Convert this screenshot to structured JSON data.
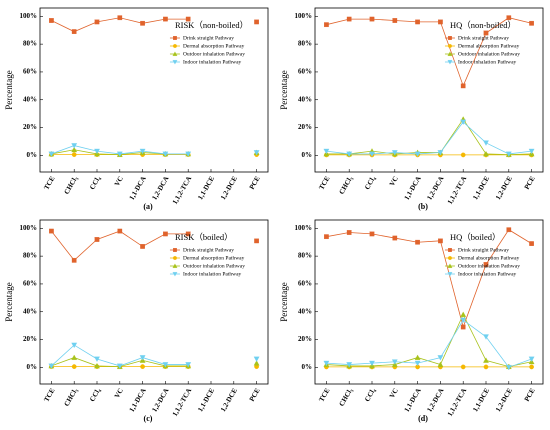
{
  "chart_data": [
    {
      "type": "line",
      "title": "RISK（non-boiled）",
      "panel_label": "(a)",
      "ylabel": "Percentage",
      "categories": [
        "TCE",
        "CHCl₃",
        "CCl₄",
        "VC",
        "1,1-DCA",
        "1,2-DCA",
        "1,1,2-TCA",
        "1,1-DCE",
        "1,2-DCE",
        "PCE"
      ],
      "series": [
        {
          "name": "Drink straight Pathway",
          "color": "#e0632c",
          "marker": "square",
          "values": [
            97,
            89,
            96,
            99,
            95,
            98,
            98,
            null,
            null,
            96
          ]
        },
        {
          "name": "Dermal absorption Pathway",
          "color": "#f5b800",
          "marker": "circle",
          "values": [
            0.5,
            0.5,
            0.5,
            0.5,
            0.5,
            0.5,
            0.5,
            null,
            null,
            0.5
          ]
        },
        {
          "name": "Outdoor inhalation Pathway",
          "color": "#a8c21a",
          "marker": "triangle-up",
          "values": [
            1,
            4,
            1,
            0.5,
            2,
            1,
            1,
            null,
            null,
            2
          ]
        },
        {
          "name": "Indoor inhalation Pathway",
          "color": "#6fd0f0",
          "marker": "triangle-down",
          "values": [
            1,
            7,
            3,
            1,
            3,
            1,
            1,
            null,
            null,
            2
          ]
        }
      ],
      "ylim": [
        -12,
        106
      ],
      "yticks": [
        {
          "value": 0,
          "label": "0%"
        },
        {
          "value": 20,
          "label": "20%"
        },
        {
          "value": 40,
          "label": "40%"
        },
        {
          "value": 60,
          "label": "60%"
        },
        {
          "value": 80,
          "label": "80%"
        },
        {
          "value": 100,
          "label": "100%"
        }
      ]
    },
    {
      "type": "line",
      "title": "HQ（non-boiled）",
      "panel_label": "(b)",
      "ylabel": "Percentage",
      "categories": [
        "TCE",
        "CHCl₃",
        "CCl₄",
        "VC",
        "1,1-DCA",
        "1,2-DCA",
        "1,1,2-TCA",
        "1,1-DCE",
        "1,2-DCE",
        "PCE"
      ],
      "series": [
        {
          "name": "Drink straight Pathway",
          "color": "#e0632c",
          "marker": "square",
          "values": [
            94,
            98,
            98,
            97,
            96,
            96,
            50,
            88,
            99,
            95
          ]
        },
        {
          "name": "Dermal absorption Pathway",
          "color": "#f5b800",
          "marker": "circle",
          "values": [
            0.3,
            0.3,
            0.3,
            0.3,
            0.3,
            0.3,
            0.3,
            0.3,
            0.3,
            0.3
          ]
        },
        {
          "name": "Outdoor inhalation Pathway",
          "color": "#a8c21a",
          "marker": "triangle-up",
          "values": [
            1,
            1,
            3,
            1,
            2,
            2,
            26,
            1,
            0.5,
            1
          ]
        },
        {
          "name": "Indoor inhalation Pathway",
          "color": "#6fd0f0",
          "marker": "triangle-down",
          "values": [
            3,
            1,
            1,
            2,
            1,
            2,
            24,
            9,
            1,
            3
          ]
        }
      ],
      "ylim": [
        -12,
        106
      ],
      "yticks": [
        {
          "value": 0,
          "label": "0%"
        },
        {
          "value": 20,
          "label": "20%"
        },
        {
          "value": 40,
          "label": "40%"
        },
        {
          "value": 60,
          "label": "60%"
        },
        {
          "value": 80,
          "label": "80%"
        },
        {
          "value": 100,
          "label": "100%"
        }
      ]
    },
    {
      "type": "line",
      "title": "RISK（boiled）",
      "panel_label": "(c)",
      "ylabel": "Percentage",
      "categories": [
        "TCE",
        "CHCl₃",
        "CCl₄",
        "VC",
        "1,1-DCA",
        "1,2-DCA",
        "1,1,2-TCA",
        "1,1-DCE",
        "1,2-DCE",
        "PCE"
      ],
      "series": [
        {
          "name": "Drink straight Pathway",
          "color": "#e0632c",
          "marker": "square",
          "values": [
            98,
            77,
            92,
            98,
            87,
            96,
            96,
            null,
            null,
            91
          ]
        },
        {
          "name": "Dermal absorption Pathway",
          "color": "#f5b800",
          "marker": "circle",
          "values": [
            0.5,
            0.5,
            0.5,
            0.5,
            0.5,
            0.5,
            0.5,
            null,
            null,
            0.5
          ]
        },
        {
          "name": "Outdoor inhalation Pathway",
          "color": "#a8c21a",
          "marker": "triangle-up",
          "values": [
            1,
            7,
            1,
            0.5,
            5,
            1,
            1,
            null,
            null,
            3
          ]
        },
        {
          "name": "Indoor inhalation Pathway",
          "color": "#6fd0f0",
          "marker": "triangle-down",
          "values": [
            1,
            16,
            6,
            1,
            7,
            2,
            2,
            null,
            null,
            6
          ]
        }
      ],
      "ylim": [
        -12,
        106
      ],
      "yticks": [
        {
          "value": 0,
          "label": "0%"
        },
        {
          "value": 20,
          "label": "20%"
        },
        {
          "value": 40,
          "label": "40%"
        },
        {
          "value": 60,
          "label": "60%"
        },
        {
          "value": 80,
          "label": "80%"
        },
        {
          "value": 100,
          "label": "100%"
        }
      ]
    },
    {
      "type": "line",
      "title": "HQ（boiled）",
      "panel_label": "(d)",
      "ylabel": "Percentage",
      "categories": [
        "TCE",
        "CHCl₃",
        "CCl₄",
        "VC",
        "1,1-DCA",
        "1,2-DCA",
        "1,1,2-TCA",
        "1,1-DCE",
        "1,2-DCE",
        "PCE"
      ],
      "series": [
        {
          "name": "Drink straight Pathway",
          "color": "#e0632c",
          "marker": "square",
          "values": [
            94,
            97,
            96,
            93,
            90,
            91,
            29,
            74,
            99,
            89
          ]
        },
        {
          "name": "Dermal absorption Pathway",
          "color": "#f5b800",
          "marker": "circle",
          "values": [
            0.3,
            0.3,
            0.3,
            0.3,
            0.3,
            0.3,
            0.3,
            0.3,
            0.3,
            0.3
          ]
        },
        {
          "name": "Outdoor inhalation Pathway",
          "color": "#a8c21a",
          "marker": "triangle-up",
          "values": [
            2,
            1,
            1,
            2,
            7,
            2,
            38,
            5,
            0.5,
            4
          ]
        },
        {
          "name": "Indoor inhalation Pathway",
          "color": "#6fd0f0",
          "marker": "triangle-down",
          "values": [
            3,
            2,
            3,
            4,
            3,
            7,
            34,
            22,
            0,
            6
          ]
        }
      ],
      "ylim": [
        -12,
        106
      ],
      "yticks": [
        {
          "value": 0,
          "label": "0%"
        },
        {
          "value": 20,
          "label": "20%"
        },
        {
          "value": 40,
          "label": "40%"
        },
        {
          "value": 60,
          "label": "60%"
        },
        {
          "value": 80,
          "label": "80%"
        },
        {
          "value": 100,
          "label": "100%"
        }
      ]
    }
  ]
}
